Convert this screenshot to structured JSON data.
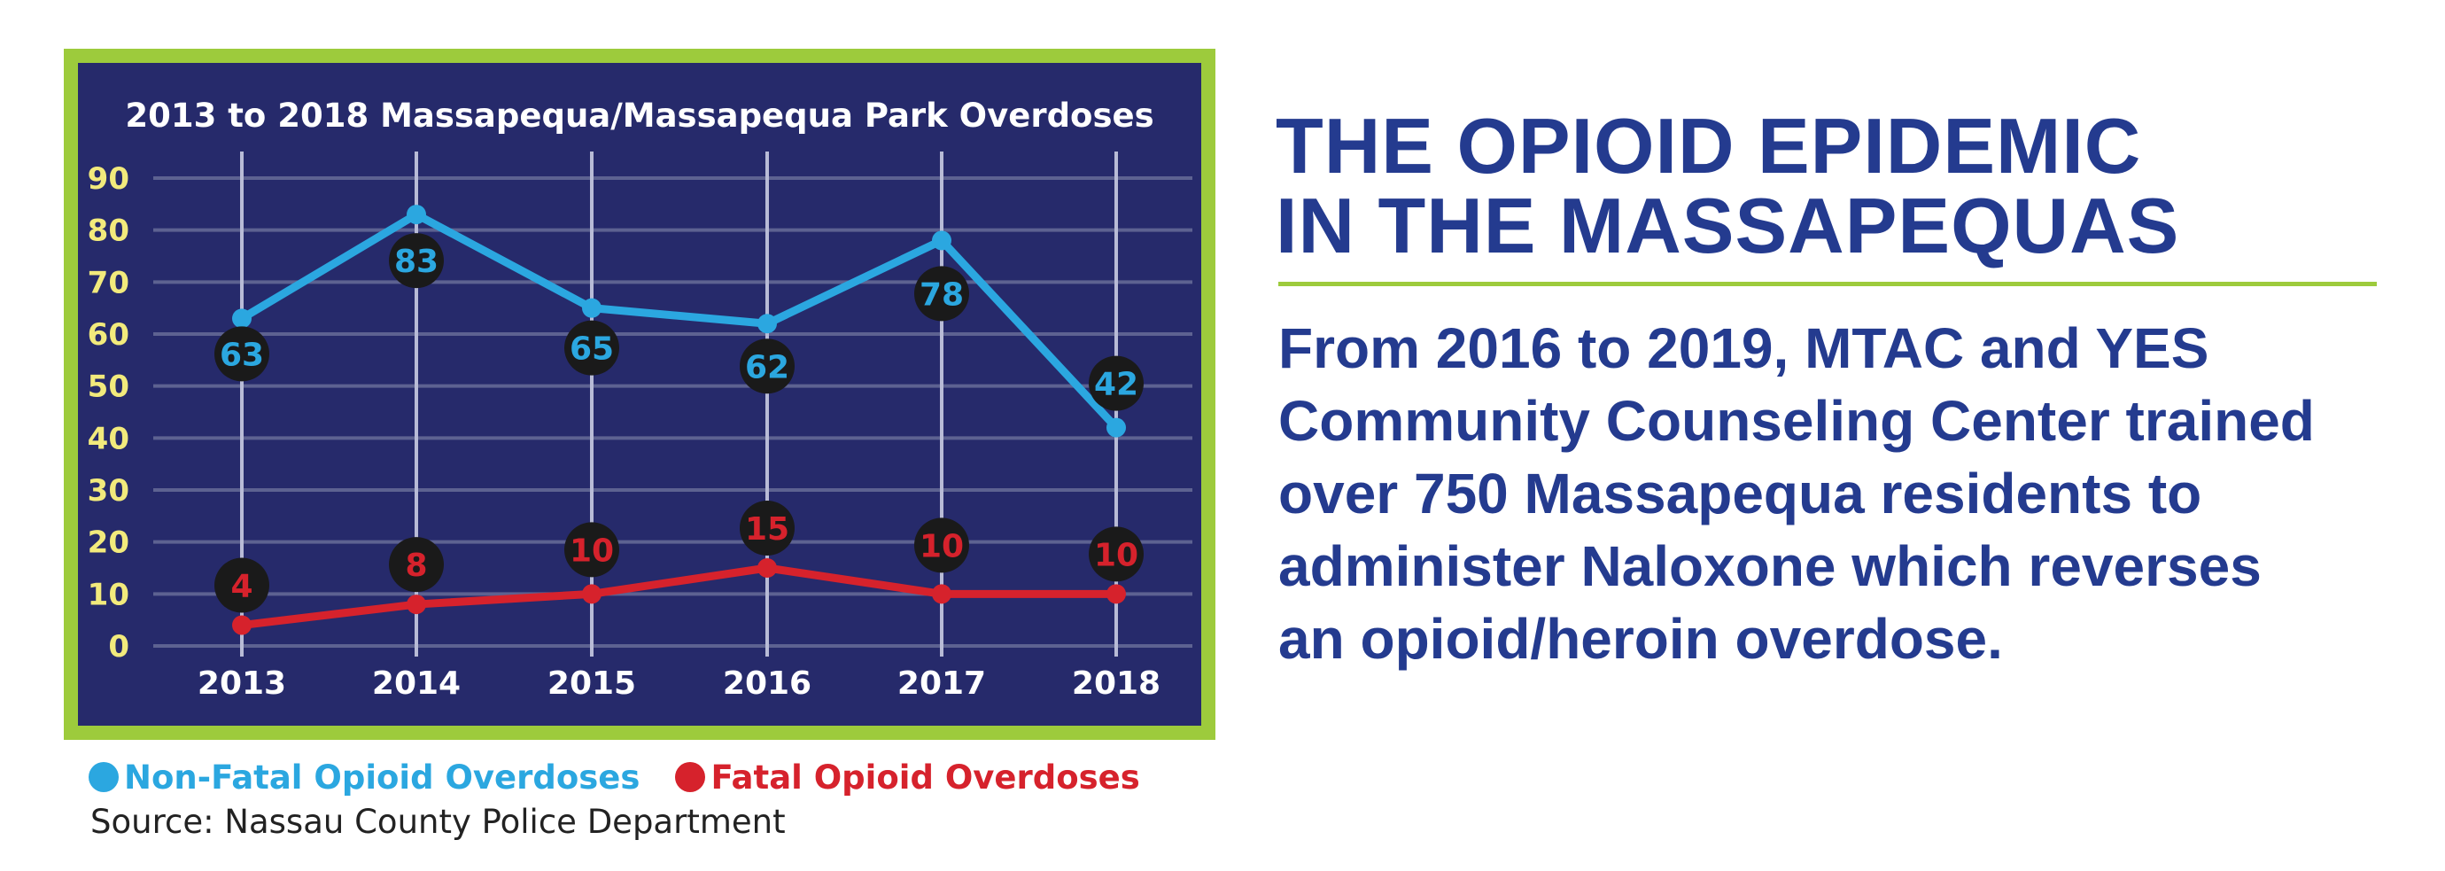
{
  "colors": {
    "frame": "#9dcb3c",
    "panel": "#262a6b",
    "grid": "#5d6291",
    "vgrid": "#b8bbd6",
    "ytick": "#f2ea7c",
    "nonfatal": "#2ba7e0",
    "fatal": "#d6222c",
    "label_bubble": "#1a1a1a",
    "headline": "#243b8f"
  },
  "chart_data": {
    "type": "line",
    "title": "2013 to 2018 Massapequa/Massapequa Park Overdoses",
    "categories": [
      "2013",
      "2014",
      "2015",
      "2016",
      "2017",
      "2018"
    ],
    "ylim": [
      0,
      90
    ],
    "yticks": [
      "0",
      "10",
      "20",
      "30",
      "40",
      "50",
      "60",
      "70",
      "80",
      "90"
    ],
    "grid": true,
    "legend": "bottom",
    "series": [
      {
        "name": "Non-Fatal Opioid Overdoses",
        "values": [
          63,
          83,
          65,
          62,
          78,
          42
        ],
        "labels": [
          "63",
          "83",
          "65",
          "62",
          "78",
          "42"
        ]
      },
      {
        "name": "Fatal Opioid Overdoses",
        "values": [
          4,
          8,
          10,
          15,
          10,
          10
        ],
        "labels": [
          "4",
          "8",
          "10",
          "15",
          "10",
          "10"
        ]
      }
    ]
  },
  "legend": {
    "nonfatal": "Non-Fatal Opioid Overdoses",
    "fatal": "Fatal Opioid Overdoses"
  },
  "source": "Source: Nassau County Police Department",
  "article": {
    "headline_lines": [
      "THE OPIOID EPIDEMIC",
      "IN THE MASSAPEQUAS"
    ],
    "body_lines": [
      "From 2016 to 2019, MTAC and YES",
      "Community Counseling Center trained",
      "over 750 Massapequa residents to",
      "administer Naloxone which reverses",
      "an opioid/heroin overdose."
    ]
  }
}
